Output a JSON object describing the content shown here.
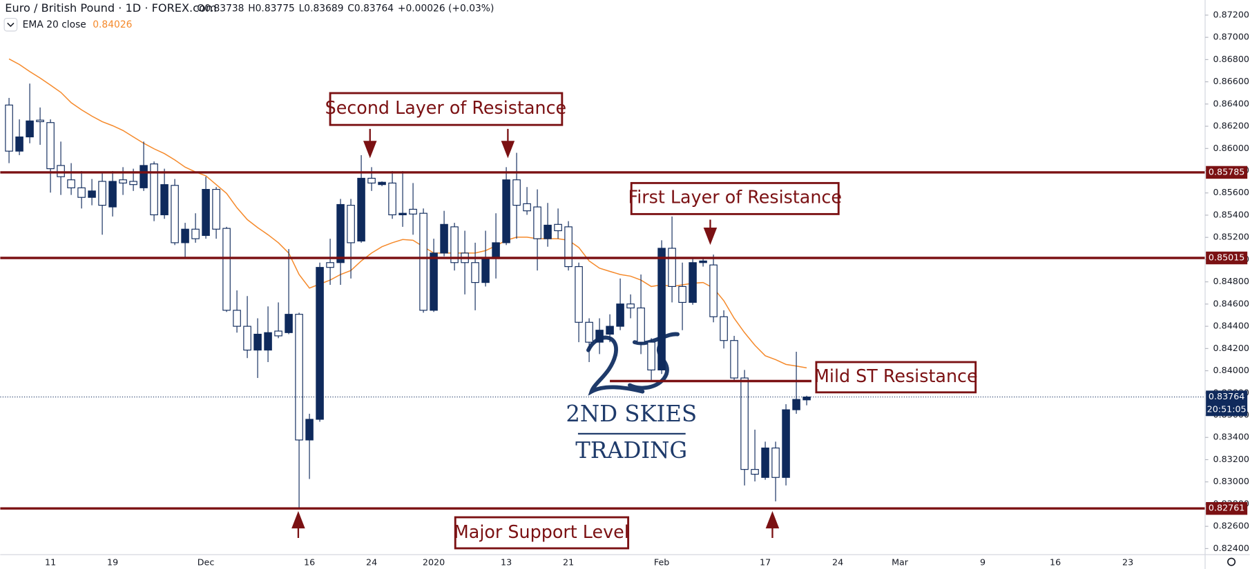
{
  "header": {
    "title": "Euro / British Pound · 1D · FOREX.com",
    "ohlc_labels": [
      "O",
      "H",
      "L",
      "C"
    ],
    "change": "+0.00026 (+0.03%)"
  },
  "watermark": {
    "line1": "2ND SKIES",
    "line2": "TRADING"
  },
  "chart_data": {
    "type": "candlestick",
    "categories": [
      null,
      null,
      null,
      null,
      "11",
      null,
      null,
      null,
      null,
      null,
      "19",
      null,
      null,
      null,
      null,
      null,
      null,
      null,
      null,
      "Dec",
      null,
      null,
      null,
      null,
      null,
      null,
      null,
      null,
      null,
      "16",
      null,
      null,
      null,
      null,
      null,
      "24",
      null,
      null,
      null,
      null,
      null,
      "2020",
      null,
      null,
      null,
      null,
      null,
      null,
      "13",
      null,
      null,
      null,
      null,
      null,
      "21",
      null,
      null,
      null,
      null,
      null,
      null,
      null,
      null,
      "Feb",
      null,
      null,
      null,
      null,
      null,
      null,
      null,
      null,
      null,
      "17",
      null,
      null,
      null,
      null,
      null,
      null,
      "24",
      null,
      null,
      null,
      null,
      null,
      "Mar",
      null,
      null,
      null,
      null,
      null,
      null,
      null,
      "9",
      null,
      null,
      null,
      null,
      null,
      null,
      "16",
      null,
      null,
      null,
      null,
      null,
      null,
      "23",
      null,
      null,
      null,
      null,
      null,
      null,
      null
    ],
    "open": [
      0.86391,
      0.85976,
      0.86104,
      0.86255,
      0.86233,
      0.85847,
      0.85718,
      0.85646,
      0.8556,
      0.85704,
      0.85474,
      0.85718,
      0.85704,
      0.85646,
      0.85861,
      0.85403,
      0.85668,
      0.85152,
      0.85274,
      0.85217,
      0.85632,
      0.85281,
      0.84544,
      0.844,
      0.84186,
      0.84186,
      0.84357,
      0.84343,
      0.84508,
      0.83377,
      0.83563,
      0.84973,
      0.84973,
      0.85489,
      0.85167,
      0.85732,
      0.85675,
      0.85689,
      0.85403,
      0.85453,
      0.85417,
      0.84544,
      0.85059,
      0.85295,
      0.85059,
      0.84973,
      0.84794,
      0.85009,
      0.85152,
      0.85718,
      0.85503,
      0.85474,
      0.85188,
      0.85317,
      0.85295,
      0.84937,
      0.84436,
      0.84257,
      0.84329,
      0.844,
      0.84601,
      0.84565,
      0.84257,
      0.84007,
      0.85102,
      0.84758,
      0.84615,
      0.84973,
      0.84952,
      0.84486,
      0.84272,
      0.83935,
      0.83112,
      0.8304,
      0.83305,
      0.8304,
      0.83649,
      0.83738,
      null,
      null,
      null,
      null,
      null,
      null,
      null,
      null,
      null,
      null,
      null,
      null,
      null,
      null,
      null,
      null,
      null,
      null,
      null,
      null,
      null,
      null,
      null,
      null,
      null,
      null,
      null,
      null,
      null,
      null,
      null,
      null,
      null,
      null,
      null,
      null,
      null,
      null
    ],
    "high": [
      0.86455,
      0.86262,
      0.86584,
      0.86369,
      0.86262,
      0.86062,
      0.85868,
      0.85797,
      0.85725,
      0.85775,
      0.85797,
      0.85832,
      0.85818,
      0.86062,
      0.85883,
      0.85818,
      0.85725,
      0.85331,
      0.85417,
      0.85746,
      0.85653,
      0.85295,
      0.84723,
      0.84672,
      0.84472,
      0.84579,
      0.84615,
      0.85095,
      0.84522,
      0.83613,
      0.84973,
      0.85188,
      0.85546,
      0.85546,
      0.8594,
      0.85832,
      0.85704,
      0.85797,
      0.85797,
      0.85689,
      0.8546,
      0.85188,
      0.85439,
      0.85331,
      0.8526,
      0.85152,
      0.8526,
      0.85417,
      0.85832,
      0.85961,
      0.85653,
      0.85632,
      0.8551,
      0.8546,
      0.85346,
      0.84973,
      0.84472,
      0.84472,
      0.84508,
      0.8483,
      0.84687,
      0.84866,
      0.84293,
      0.85174,
      0.85388,
      0.84973,
      0.85009,
      0.85009,
      0.85045,
      0.84544,
      0.84314,
      0.84007,
      0.8347,
      0.83362,
      0.83362,
      0.83699,
      0.84171,
      0.83775,
      null,
      null,
      null,
      null,
      null,
      null,
      null,
      null,
      null,
      null,
      null,
      null,
      null,
      null,
      null,
      null,
      null,
      null,
      null,
      null,
      null,
      null,
      null,
      null,
      null,
      null,
      null,
      null,
      null,
      null,
      null,
      null,
      null,
      null,
      null,
      null,
      null,
      null
    ],
    "low": [
      0.85868,
      0.8594,
      0.86047,
      0.86033,
      0.85603,
      0.85582,
      0.85582,
      0.8546,
      0.85489,
      0.85224,
      0.85388,
      0.85582,
      0.85618,
      0.85618,
      0.85346,
      0.85367,
      0.85131,
      0.85009,
      0.85152,
      0.85188,
      0.85188,
      0.84529,
      0.84343,
      0.84114,
      0.83935,
      0.84078,
      0.84293,
      0.84329,
      0.82761,
      0.83026,
      0.83541,
      0.84773,
      0.84773,
      0.8483,
      0.85152,
      0.85618,
      0.85661,
      0.85367,
      0.85295,
      0.85224,
      0.84522,
      0.84529,
      0.8503,
      0.84902,
      0.84687,
      0.84544,
      0.84758,
      0.8483,
      0.85131,
      0.85188,
      0.85403,
      0.84902,
      0.85116,
      0.85188,
      0.84902,
      0.84257,
      0.84078,
      0.8415,
      0.84257,
      0.84365,
      0.84472,
      0.8415,
      0.83899,
      0.83971,
      0.84615,
      0.84365,
      0.84594,
      0.84937,
      0.84436,
      0.842,
      0.83914,
      0.82968,
      0.83004,
      0.83019,
      0.82825,
      0.82968,
      0.83613,
      0.83689,
      null,
      null,
      null,
      null,
      null,
      null,
      null,
      null,
      null,
      null,
      null,
      null,
      null,
      null,
      null,
      null,
      null,
      null,
      null,
      null,
      null,
      null,
      null,
      null,
      null,
      null,
      null,
      null,
      null,
      null,
      null,
      null,
      null,
      null,
      null,
      null,
      null,
      null
    ],
    "close": [
      0.85976,
      0.86104,
      0.86248,
      0.86241,
      0.85818,
      0.85746,
      0.85646,
      0.8556,
      0.85618,
      0.85489,
      0.85704,
      0.85689,
      0.85675,
      0.85847,
      0.85403,
      0.85675,
      0.85152,
      0.85274,
      0.85188,
      0.85632,
      0.85274,
      0.84544,
      0.844,
      0.84186,
      0.84329,
      0.84343,
      0.84314,
      0.84508,
      0.83377,
      0.83563,
      0.8493,
      0.8493,
      0.85496,
      0.85152,
      0.85732,
      0.85689,
      0.85696,
      0.85403,
      0.85417,
      0.8541,
      0.84544,
      0.85059,
      0.85317,
      0.84973,
      0.84973,
      0.84794,
      0.85009,
      0.85152,
      0.85718,
      0.85489,
      0.85439,
      0.85188,
      0.8531,
      0.8526,
      0.84937,
      0.84436,
      0.84257,
      0.84365,
      0.844,
      0.84601,
      0.84565,
      0.84257,
      0.84007,
      0.85102,
      0.84758,
      0.84615,
      0.84973,
      0.84988,
      0.84486,
      0.84272,
      0.83935,
      0.83112,
      0.83069,
      0.83305,
      0.8304,
      0.83649,
      0.83742,
      0.83764,
      null,
      null,
      null,
      null,
      null,
      null,
      null,
      null,
      null,
      null,
      null,
      null,
      null,
      null,
      null,
      null,
      null,
      null,
      null,
      null,
      null,
      null,
      null,
      null,
      null,
      null,
      null,
      null,
      null,
      null,
      null,
      null,
      null,
      null,
      null,
      null,
      null,
      null
    ],
    "colors": {
      "up": "#0f2a5c",
      "down": "#ffffff",
      "wick": "#0f2a5c"
    },
    "ema": {
      "name": "EMA 20 close",
      "color": "#f5892a",
      "values": [
        0.86806,
        0.86756,
        0.86692,
        0.86634,
        0.8657,
        0.86505,
        0.86412,
        0.86348,
        0.86291,
        0.86241,
        0.86205,
        0.86162,
        0.86104,
        0.86047,
        0.85997,
        0.85954,
        0.85897,
        0.85832,
        0.85789,
        0.85754,
        0.85675,
        0.85596,
        0.85467,
        0.8536,
        0.85288,
        0.85224,
        0.85152,
        0.85059,
        0.84866,
        0.84744,
        0.8478,
        0.84816,
        0.84866,
        0.84902,
        0.84988,
        0.85059,
        0.85116,
        0.85152,
        0.85181,
        0.85174,
        0.85116,
        0.85059,
        0.85059,
        0.85059,
        0.85059,
        0.85059,
        0.85081,
        0.85124,
        0.85174,
        0.85202,
        0.85202,
        0.85188,
        0.85188,
        0.85188,
        0.85174,
        0.85109,
        0.84988,
        0.84923,
        0.84894,
        0.84866,
        0.84851,
        0.84816,
        0.84758,
        0.84773,
        0.84758,
        0.84773,
        0.84787,
        0.84794,
        0.84744,
        0.8463,
        0.84472,
        0.84343,
        0.84229,
        0.84135,
        0.841,
        0.84057,
        0.84042,
        0.84026,
        null,
        null,
        null,
        null,
        null,
        null,
        null,
        null,
        null,
        null,
        null,
        null,
        null,
        null,
        null,
        null,
        null,
        null,
        null,
        null,
        null,
        null,
        null,
        null,
        null,
        null,
        null,
        null,
        null,
        null,
        null,
        null,
        null,
        null,
        null,
        null,
        null,
        null
      ]
    },
    "levels": [
      0.85785,
      0.85015,
      0.82761
    ],
    "level_color": "#7b1113",
    "countdown": "20:51:05",
    "ylim": [
      0.82345,
      0.87336
    ],
    "yticks": [
      {
        "value": 0.872,
        "label": "0.87200"
      },
      {
        "value": 0.87,
        "label": "0.87000"
      },
      {
        "value": 0.868,
        "label": "0.86800"
      },
      {
        "value": 0.866,
        "label": "0.86600"
      },
      {
        "value": 0.864,
        "label": "0.86400"
      },
      {
        "value": 0.862,
        "label": "0.86200"
      },
      {
        "value": 0.86,
        "label": "0.86000"
      },
      {
        "value": 0.858,
        "label": "0.85800"
      },
      {
        "value": 0.856,
        "label": "0.85600"
      },
      {
        "value": 0.854,
        "label": "0.85400"
      },
      {
        "value": 0.852,
        "label": "0.85200"
      },
      {
        "value": 0.85,
        "label": "0.85000"
      },
      {
        "value": 0.848,
        "label": "0.84800"
      },
      {
        "value": 0.846,
        "label": "0.84600"
      },
      {
        "value": 0.844,
        "label": "0.84400"
      },
      {
        "value": 0.842,
        "label": "0.84200"
      },
      {
        "value": 0.84,
        "label": "0.84000"
      },
      {
        "value": 0.838,
        "label": "0.83800"
      },
      {
        "value": 0.836,
        "label": "0.83600"
      },
      {
        "value": 0.834,
        "label": "0.83400"
      },
      {
        "value": 0.832,
        "label": "0.83200"
      },
      {
        "value": 0.83,
        "label": "0.83000"
      },
      {
        "value": 0.828,
        "label": "0.82800"
      },
      {
        "value": 0.826,
        "label": "0.82600"
      },
      {
        "value": 0.824,
        "label": "0.82400"
      }
    ],
    "grid": false,
    "annotations": [
      {
        "text": "Second Layer of Resistance"
      },
      {
        "text": "First Layer of Resistance"
      },
      {
        "text": "Mild ST Resistance",
        "value": 0.83907
      },
      {
        "text": "Major Support Level"
      }
    ]
  }
}
